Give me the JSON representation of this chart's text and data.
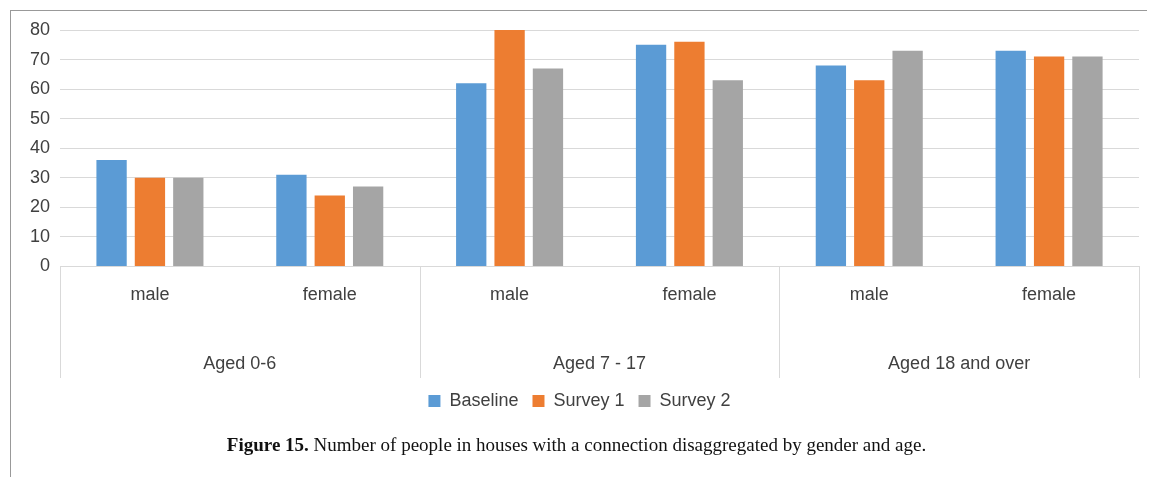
{
  "chart_data": {
    "type": "bar",
    "title": "Figure 15. Number of people in houses with a connection disaggregated by gender and age.",
    "categories": [
      "male",
      "female",
      "male",
      "female",
      "male",
      "female"
    ],
    "series": [
      {
        "name": "Baseline",
        "color": "#5b9bd5",
        "values": [
          36,
          31,
          62,
          75,
          68,
          73
        ]
      },
      {
        "name": "Survey 1",
        "color": "#ed7d31",
        "values": [
          30,
          24,
          80,
          76,
          63,
          71
        ]
      },
      {
        "name": "Survey 2",
        "color": "#a5a5a5",
        "values": [
          30,
          27,
          67,
          63,
          73,
          71
        ]
      }
    ],
    "annotations": [
      "Aged 0-6",
      "Aged 7 - 17",
      "Aged 18 and over"
    ],
    "ylim": [
      0,
      80
    ],
    "yticks": [
      0,
      10,
      20,
      30,
      40,
      50,
      60,
      70,
      80
    ],
    "grid": "y",
    "legend": "bottom"
  }
}
